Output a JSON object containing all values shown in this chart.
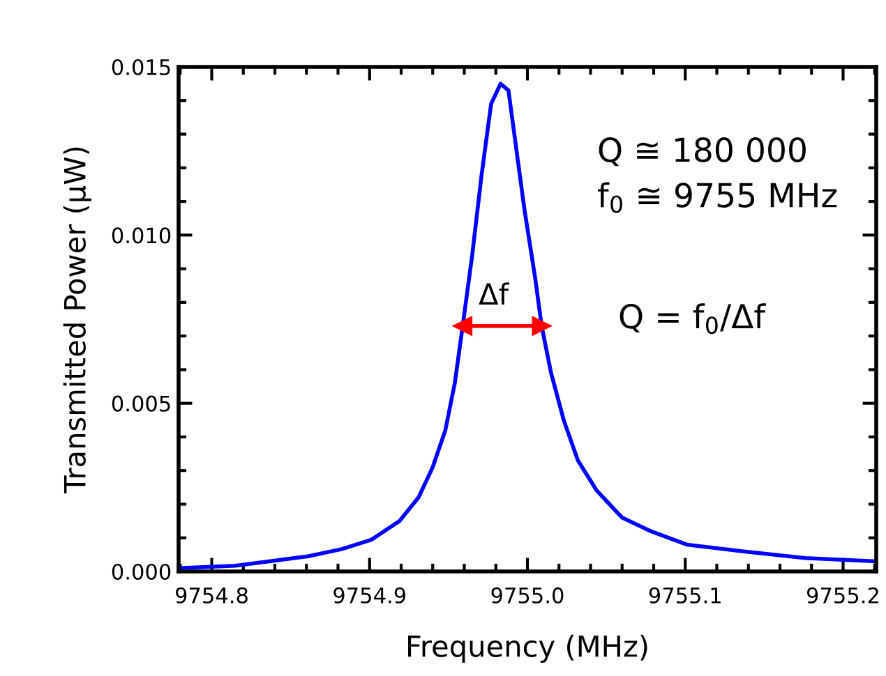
{
  "chart_data": {
    "type": "line",
    "xlabel": "Frequency (MHz)",
    "ylabel": "Transmitted Power (μW)",
    "xlim": [
      9754.779,
      9755.221
    ],
    "xticks": [
      9754.8,
      9754.9,
      {
        "value": 9755.0,
        "label": "9755.0"
      },
      9755.1,
      9755.2
    ],
    "ylim": [
      0,
      0.015
    ],
    "yticks": [
      {
        "value": 0,
        "label": "0.000"
      },
      {
        "value": 0.005,
        "label": "0.005"
      },
      {
        "value": 0.01,
        "label": "0.010"
      },
      {
        "value": 0.015,
        "label": "0.015"
      }
    ],
    "grid": false,
    "legend": false,
    "series": [
      {
        "color": "#0000ff",
        "x": [
          9754.779,
          9754.815,
          9754.861,
          9754.882,
          9754.901,
          9754.919,
          9754.931,
          9754.94,
          9754.948,
          9754.954,
          9754.959,
          9754.965,
          9754.971,
          9754.977,
          9754.983,
          9754.988,
          9754.992,
          9754.998,
          9755.005,
          9755.009,
          9755.015,
          9755.023,
          9755.032,
          9755.044,
          9755.06,
          9755.078,
          9755.101,
          9755.136,
          9755.176,
          9755.221
        ],
        "values": [
          0.0001,
          0.00017,
          0.00045,
          0.00066,
          0.00094,
          0.0015,
          0.0022,
          0.0031,
          0.0042,
          0.0056,
          0.0073,
          0.0094,
          0.0118,
          0.0139,
          0.0145,
          0.0143,
          0.0129,
          0.0108,
          0.0087,
          0.0073,
          0.0059,
          0.0045,
          0.0033,
          0.0024,
          0.0016,
          0.0012,
          0.0008,
          0.0006,
          0.0004,
          0.0003
        ]
      },
      {
        "type": "line",
        "marker": "triangle",
        "color": "#ff0000",
        "x": [
          9754.959,
          9755.009
        ],
        "values": [
          0.0073,
          0.0073
        ]
      }
    ],
    "annotations": [
      "Δf",
      "Q ≅ 180 000",
      "f$_{0}$ ≅ 9755 MHz",
      "Q = f$_{0}$/Δf"
    ]
  }
}
